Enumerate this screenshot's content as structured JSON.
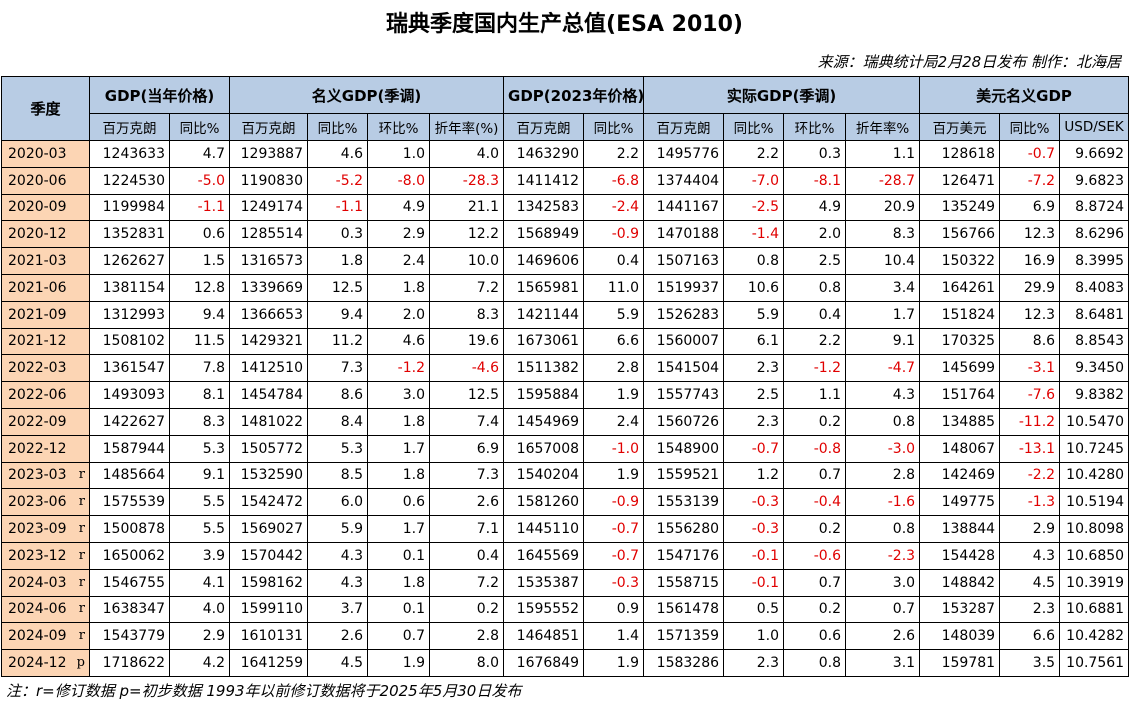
{
  "title": "瑞典季度国内生产总值(ESA 2010)",
  "source": "来源：瑞典统计局2月28日发布  制作：北海居",
  "corner": "季度",
  "groups": [
    {
      "label": "GDP(当年价格)",
      "span": 2
    },
    {
      "label": "名义GDP(季调)",
      "span": 4
    },
    {
      "label": "GDP(2023年价格)",
      "span": 2
    },
    {
      "label": "实际GDP(季调)",
      "span": 4
    },
    {
      "label": "美元名义GDP",
      "span": 3
    }
  ],
  "sub_headers": [
    "百万克朗",
    "同比%",
    "百万克朗",
    "同比%",
    "环比%",
    "折年率(%)",
    "百万克朗",
    "同比%",
    "百万克朗",
    "同比%",
    "环比%",
    "折年率%",
    "百万美元",
    "同比%",
    "USD/SEK"
  ],
  "rows": [
    {
      "quarter": "2020-03",
      "values": [
        "1243633",
        "4.7",
        "1293887",
        "4.6",
        "1.0",
        "4.0",
        "1463290",
        "2.2",
        "1495776",
        "2.2",
        "0.3",
        "1.1",
        "128618",
        "-0.7",
        "9.6692"
      ]
    },
    {
      "quarter": "2020-06",
      "values": [
        "1224530",
        "-5.0",
        "1190830",
        "-5.2",
        "-8.0",
        "-28.3",
        "1411412",
        "-6.8",
        "1374404",
        "-7.0",
        "-8.1",
        "-28.7",
        "126471",
        "-7.2",
        "9.6823"
      ]
    },
    {
      "quarter": "2020-09",
      "values": [
        "1199984",
        "-1.1",
        "1249174",
        "-1.1",
        "4.9",
        "21.1",
        "1342583",
        "-2.4",
        "1441167",
        "-2.5",
        "4.9",
        "20.9",
        "135249",
        "6.9",
        "8.8724"
      ]
    },
    {
      "quarter": "2020-12",
      "values": [
        "1352831",
        "0.6",
        "1285514",
        "0.3",
        "2.9",
        "12.2",
        "1568949",
        "-0.9",
        "1470188",
        "-1.4",
        "2.0",
        "8.3",
        "156766",
        "12.3",
        "8.6296"
      ]
    },
    {
      "quarter": "2021-03",
      "values": [
        "1262627",
        "1.5",
        "1316573",
        "1.8",
        "2.4",
        "10.0",
        "1469606",
        "0.4",
        "1507163",
        "0.8",
        "2.5",
        "10.4",
        "150322",
        "16.9",
        "8.3995"
      ]
    },
    {
      "quarter": "2021-06",
      "values": [
        "1381154",
        "12.8",
        "1339669",
        "12.5",
        "1.8",
        "7.2",
        "1565981",
        "11.0",
        "1519937",
        "10.6",
        "0.8",
        "3.4",
        "164261",
        "29.9",
        "8.4083"
      ]
    },
    {
      "quarter": "2021-09",
      "values": [
        "1312993",
        "9.4",
        "1366653",
        "9.4",
        "2.0",
        "8.3",
        "1421144",
        "5.9",
        "1526283",
        "5.9",
        "0.4",
        "1.7",
        "151824",
        "12.3",
        "8.6481"
      ]
    },
    {
      "quarter": "2021-12",
      "values": [
        "1508102",
        "11.5",
        "1429321",
        "11.2",
        "4.6",
        "19.6",
        "1673061",
        "6.6",
        "1560007",
        "6.1",
        "2.2",
        "9.1",
        "170325",
        "8.6",
        "8.8543"
      ]
    },
    {
      "quarter": "2022-03",
      "values": [
        "1361547",
        "7.8",
        "1412510",
        "7.3",
        "-1.2",
        "-4.6",
        "1511382",
        "2.8",
        "1541504",
        "2.3",
        "-1.2",
        "-4.7",
        "145699",
        "-3.1",
        "9.3450"
      ]
    },
    {
      "quarter": "2022-06",
      "values": [
        "1493093",
        "8.1",
        "1454784",
        "8.6",
        "3.0",
        "12.5",
        "1595884",
        "1.9",
        "1557743",
        "2.5",
        "1.1",
        "4.3",
        "151764",
        "-7.6",
        "9.8382"
      ]
    },
    {
      "quarter": "2022-09",
      "values": [
        "1422627",
        "8.3",
        "1481022",
        "8.4",
        "1.8",
        "7.4",
        "1454969",
        "2.4",
        "1560726",
        "2.3",
        "0.2",
        "0.8",
        "134885",
        "-11.2",
        "10.5470"
      ]
    },
    {
      "quarter": "2022-12",
      "values": [
        "1587944",
        "5.3",
        "1505772",
        "5.3",
        "1.7",
        "6.9",
        "1657008",
        "-1.0",
        "1548900",
        "-0.7",
        "-0.8",
        "-3.0",
        "148067",
        "-13.1",
        "10.7245"
      ]
    },
    {
      "quarter": "2023-03",
      "flag": "r",
      "values": [
        "1485664",
        "9.1",
        "1532590",
        "8.5",
        "1.8",
        "7.3",
        "1540204",
        "1.9",
        "1559521",
        "1.2",
        "0.7",
        "2.8",
        "142469",
        "-2.2",
        "10.4280"
      ]
    },
    {
      "quarter": "2023-06",
      "flag": "r",
      "values": [
        "1575539",
        "5.5",
        "1542472",
        "6.0",
        "0.6",
        "2.6",
        "1581260",
        "-0.9",
        "1553139",
        "-0.3",
        "-0.4",
        "-1.6",
        "149775",
        "-1.3",
        "10.5194"
      ]
    },
    {
      "quarter": "2023-09",
      "flag": "r",
      "values": [
        "1500878",
        "5.5",
        "1569027",
        "5.9",
        "1.7",
        "7.1",
        "1445110",
        "-0.7",
        "1556280",
        "-0.3",
        "0.2",
        "0.8",
        "138844",
        "2.9",
        "10.8098"
      ]
    },
    {
      "quarter": "2023-12",
      "flag": "r",
      "values": [
        "1650062",
        "3.9",
        "1570442",
        "4.3",
        "0.1",
        "0.4",
        "1645569",
        "-0.7",
        "1547176",
        "-0.1",
        "-0.6",
        "-2.3",
        "154428",
        "4.3",
        "10.6850"
      ]
    },
    {
      "quarter": "2024-03",
      "flag": "r",
      "values": [
        "1546755",
        "4.1",
        "1598162",
        "4.3",
        "1.8",
        "7.2",
        "1535387",
        "-0.3",
        "1558715",
        "-0.1",
        "0.7",
        "3.0",
        "148842",
        "4.5",
        "10.3919"
      ]
    },
    {
      "quarter": "2024-06",
      "flag": "r",
      "values": [
        "1638347",
        "4.0",
        "1599110",
        "3.7",
        "0.1",
        "0.2",
        "1595552",
        "0.9",
        "1561478",
        "0.5",
        "0.2",
        "0.7",
        "153287",
        "2.3",
        "10.6881"
      ]
    },
    {
      "quarter": "2024-09",
      "flag": "r",
      "values": [
        "1543779",
        "2.9",
        "1610131",
        "2.6",
        "0.7",
        "2.8",
        "1464851",
        "1.4",
        "1571359",
        "1.0",
        "0.6",
        "2.6",
        "148039",
        "6.6",
        "10.4282"
      ]
    },
    {
      "quarter": "2024-12",
      "flag": "p",
      "values": [
        "1718622",
        "4.2",
        "1641259",
        "4.5",
        "1.9",
        "8.0",
        "1676849",
        "1.9",
        "1583286",
        "2.3",
        "0.8",
        "3.1",
        "159781",
        "3.5",
        "10.7561"
      ]
    }
  ],
  "footnote": "注：r=修订数据 p=初步数据 1993年以前修订数据将于2025年5月30日发布"
}
